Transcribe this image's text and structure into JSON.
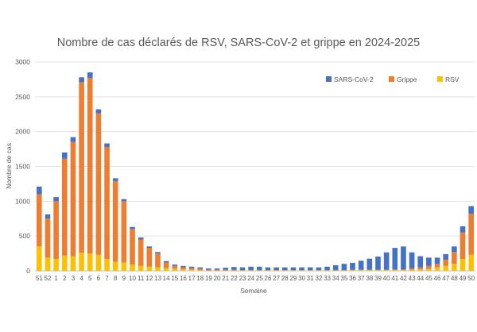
{
  "chart_data": {
    "type": "bar",
    "stacked": true,
    "title": "Nombre de cas déclarés de RSV, SARS-CoV-2 et grippe en 2024-2025",
    "xlabel": "Semaine",
    "ylabel": "Nombre de cas",
    "ylim": [
      0,
      3000
    ],
    "yticks": [
      0,
      500,
      1000,
      1500,
      2000,
      2500,
      3000
    ],
    "grid": true,
    "legend_position": "top-right",
    "categories": [
      "51",
      "52",
      "1",
      "2",
      "3",
      "4",
      "5",
      "6",
      "7",
      "8",
      "9",
      "10",
      "11",
      "12",
      "13",
      "14",
      "15",
      "16",
      "17",
      "18",
      "19",
      "20",
      "21",
      "22",
      "23",
      "24",
      "25",
      "26",
      "27",
      "28",
      "29",
      "30",
      "31",
      "32",
      "33",
      "34",
      "35",
      "36",
      "37",
      "38",
      "39",
      "40",
      "41",
      "42",
      "43",
      "44",
      "45",
      "46",
      "47",
      "48",
      "49",
      "50"
    ],
    "series": [
      {
        "name": "RSV",
        "color": "#FFC000",
        "values": [
          350,
          190,
          170,
          220,
          210,
          260,
          250,
          230,
          170,
          130,
          120,
          90,
          70,
          60,
          50,
          40,
          30,
          20,
          15,
          10,
          5,
          5,
          5,
          5,
          5,
          5,
          5,
          5,
          5,
          5,
          5,
          5,
          5,
          5,
          5,
          5,
          5,
          10,
          10,
          10,
          10,
          10,
          10,
          10,
          15,
          20,
          30,
          50,
          70,
          100,
          170,
          230
        ]
      },
      {
        "name": "Grippe",
        "color": "#ED7D31",
        "values": [
          750,
          560,
          830,
          1390,
          1640,
          2450,
          2520,
          2030,
          1610,
          1160,
          880,
          510,
          380,
          270,
          200,
          80,
          40,
          30,
          25,
          20,
          10,
          10,
          10,
          10,
          5,
          5,
          5,
          5,
          5,
          5,
          5,
          5,
          5,
          5,
          5,
          5,
          5,
          5,
          5,
          5,
          5,
          5,
          10,
          10,
          20,
          30,
          40,
          50,
          90,
          170,
          380,
          590
        ]
      },
      {
        "name": "SARS-CoV-2",
        "color": "#4472C4",
        "values": [
          110,
          60,
          60,
          90,
          70,
          70,
          80,
          60,
          50,
          40,
          30,
          30,
          30,
          20,
          20,
          20,
          20,
          20,
          20,
          20,
          20,
          20,
          30,
          40,
          40,
          50,
          50,
          40,
          40,
          40,
          40,
          40,
          40,
          40,
          50,
          70,
          90,
          100,
          130,
          160,
          190,
          250,
          310,
          330,
          230,
          160,
          120,
          90,
          80,
          80,
          90,
          110
        ]
      }
    ]
  }
}
